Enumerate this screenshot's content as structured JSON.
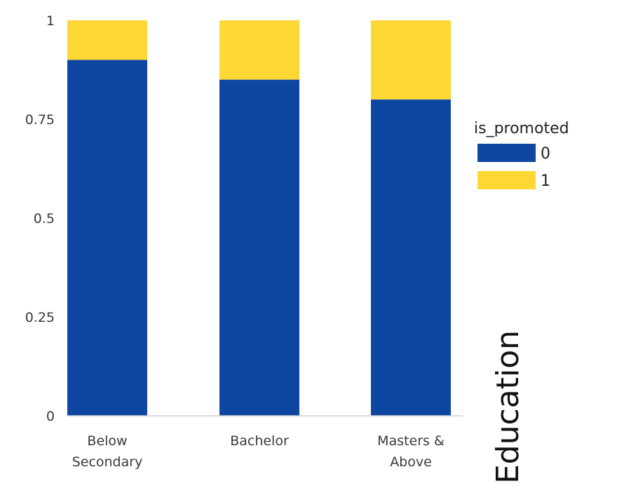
{
  "chart_data": {
    "type": "bar",
    "stacked": true,
    "categories": [
      [
        "Below",
        "Secondary"
      ],
      [
        "Bachelor"
      ],
      [
        "Masters &",
        "Above"
      ]
    ],
    "series": [
      {
        "name": "0",
        "color": "#0d47a1",
        "values": [
          0.9,
          0.85,
          0.8
        ]
      },
      {
        "name": "1",
        "color": "#fdd835",
        "values": [
          0.1,
          0.15,
          0.2
        ]
      }
    ],
    "y_ticks": [
      "0",
      "0.25",
      "0.5",
      "0.75",
      "1"
    ],
    "y_tick_values": [
      0,
      0.25,
      0.5,
      0.75,
      1
    ],
    "ylim": [
      0,
      1
    ],
    "xlabel": "Education",
    "legend": {
      "title": "is_promoted",
      "placement": "right-top"
    },
    "grid": false
  }
}
